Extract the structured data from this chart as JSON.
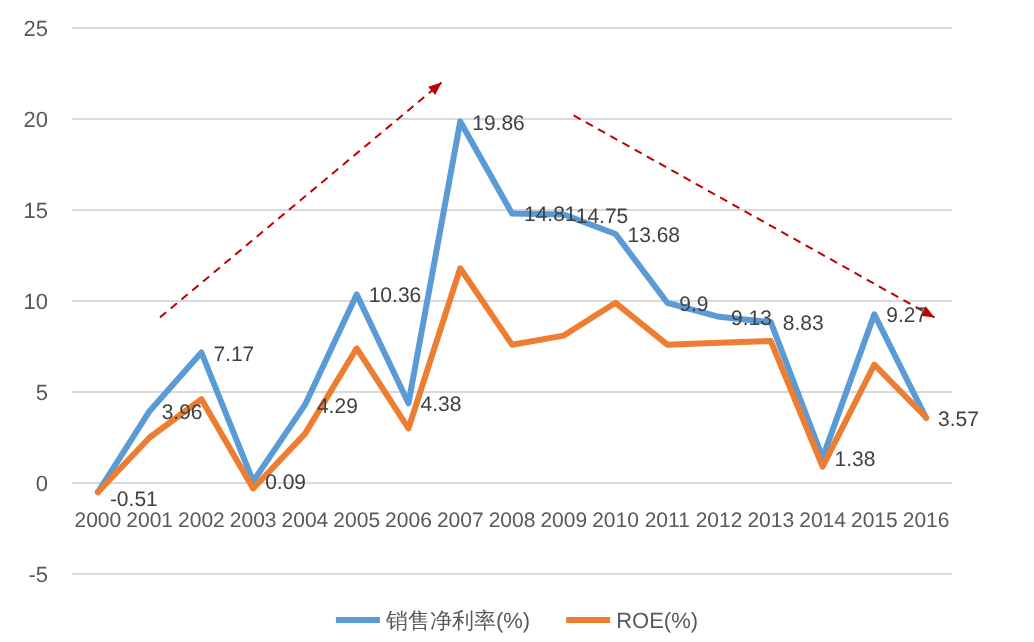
{
  "chart_data": {
    "type": "line",
    "categories": [
      "2000",
      "2001",
      "2002",
      "2003",
      "2004",
      "2005",
      "2006",
      "2007",
      "2008",
      "2009",
      "2010",
      "2011",
      "2012",
      "2013",
      "2014",
      "2015",
      "2016"
    ],
    "series": [
      {
        "name": "销售净利率(%)",
        "color": "#5b9bd5",
        "values": [
          -0.51,
          3.96,
          7.17,
          0.09,
          4.29,
          10.36,
          4.38,
          19.86,
          14.81,
          14.75,
          13.68,
          9.9,
          9.13,
          8.83,
          1.38,
          9.27,
          3.57
        ],
        "value_labels": [
          "-0.51",
          "3.96",
          "7.17",
          "0.09",
          "4.29",
          "10.36",
          "4.38",
          "19.86",
          "14.81",
          "14.75",
          "13.68",
          "9.9",
          "9.13",
          "8.83",
          "1.38",
          "9.27",
          "3.57"
        ]
      },
      {
        "name": "ROE(%)",
        "color": "#ed7d31",
        "values": [
          -0.5,
          2.5,
          4.6,
          -0.3,
          2.7,
          7.4,
          3.0,
          11.8,
          7.6,
          8.1,
          9.9,
          7.6,
          7.7,
          7.8,
          0.9,
          6.5,
          3.6
        ]
      }
    ],
    "ylim": [
      -5,
      25
    ],
    "yticks": [
      -5,
      0,
      5,
      10,
      15,
      20,
      25
    ],
    "grid": "y",
    "legend": "bottom",
    "marker": "none",
    "line_style": "solid"
  }
}
